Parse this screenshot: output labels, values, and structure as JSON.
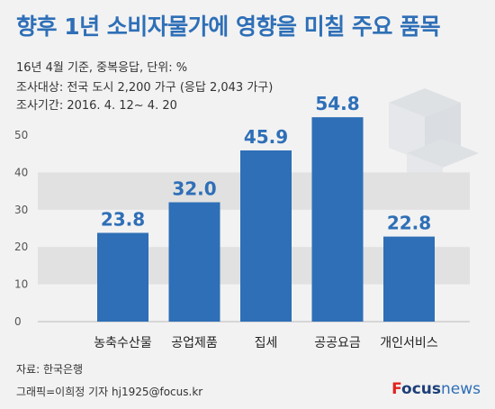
{
  "title": "향후 1년 소비자물가에 영향을 미칠 주요 품목",
  "meta": {
    "line1": "16년 4월 기준, 중복응답, 단위: %",
    "line2": "조사대상: 전국 도시 2,200 가구 (응답 2,043 가구)",
    "line3": "조사기간: 2016. 4. 12~ 4. 20"
  },
  "footer": {
    "source": "자료: 한국은행",
    "credit": "그래픽=이희정 기자 hj1925@focus.kr"
  },
  "brand": {
    "part1": "F",
    "part2": "ocus",
    "part3": "news"
  },
  "colors": {
    "title": "#2e6fb7",
    "bar": "#2e6fb7",
    "value": "#2e6fb7",
    "band": "#e1e1e1"
  },
  "chart_data": {
    "type": "bar",
    "categories": [
      "농축수산물",
      "공업제품",
      "집세",
      "공공요금",
      "개인서비스"
    ],
    "values": [
      23.8,
      32.0,
      45.9,
      54.8,
      22.8
    ],
    "value_labels": [
      "23.8",
      "32.0",
      "45.9",
      "54.8",
      "22.8"
    ],
    "yticks": [
      0,
      10,
      20,
      30,
      40,
      50
    ],
    "ylim": [
      0,
      50
    ],
    "grid": "alternating horizontal bands"
  }
}
